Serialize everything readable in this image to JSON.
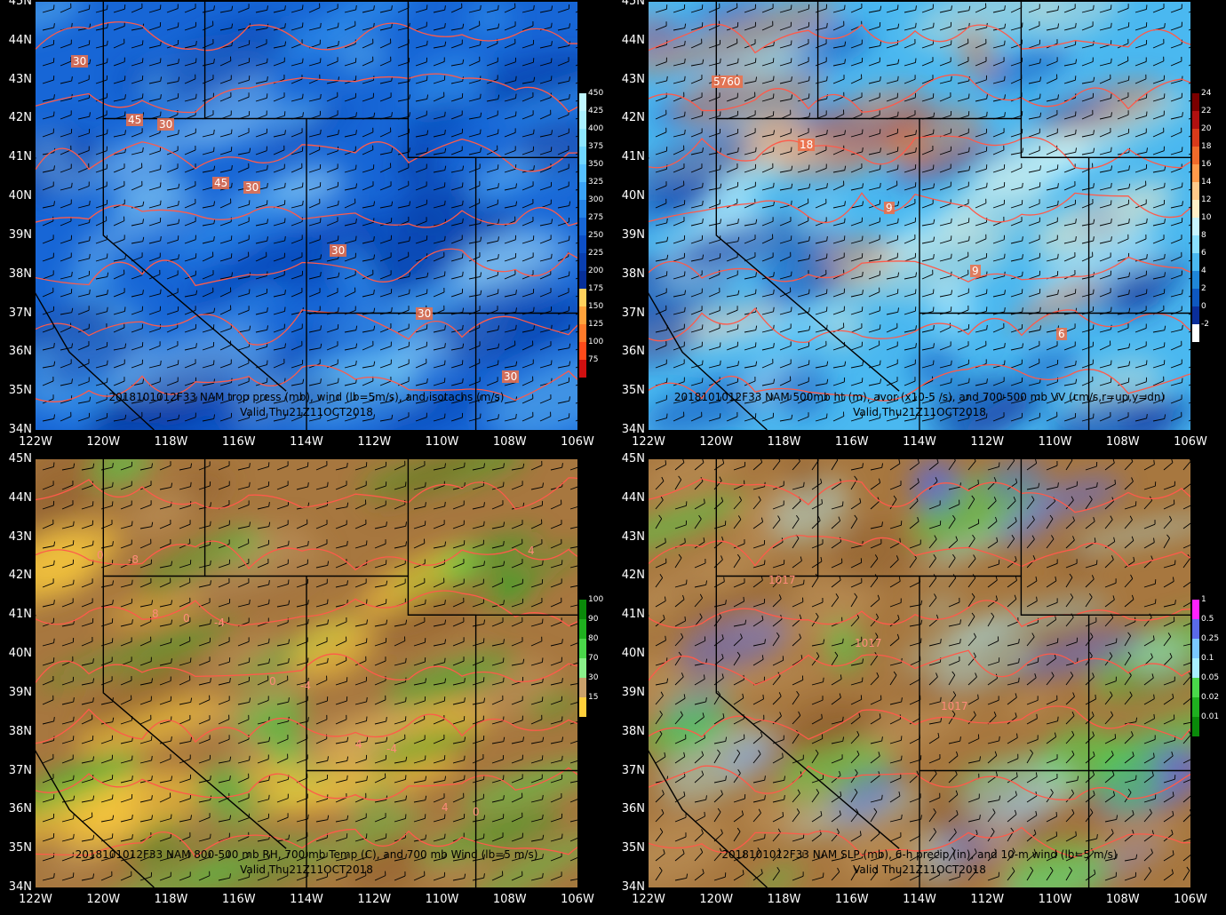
{
  "panels": [
    {
      "id": "trop",
      "caption1": "2018101012F33 NAM trop press (mb), wind (lb=5m/s), and isotachs (m/s)",
      "caption2": "Valid Thu21Z11OCT2018",
      "colorbar": [
        "450",
        "425",
        "400",
        "375",
        "350",
        "325",
        "300",
        "275",
        "250",
        "225",
        "200",
        "175",
        "150",
        "125",
        "100",
        "75"
      ],
      "colorbar_colors": [
        "#bff6ff",
        "#aaf0ff",
        "#8de6ff",
        "#6fd6ff",
        "#55c0ff",
        "#3aa2f5",
        "#2684e6",
        "#1766d6",
        "#0d4fc5",
        "#0a3fb0",
        "#07309a",
        "#ffd15c",
        "#ffa23b",
        "#ff7a2a",
        "#ff4a1a",
        "#d01010"
      ],
      "contour_labels": [
        "30",
        "30",
        "30",
        "30",
        "30",
        "30",
        "45",
        "45"
      ]
    },
    {
      "id": "h500",
      "caption1": "2018101012F33 NAM 500mb ht (m), avor (x10-5 /s), and 700-500 mb VV (cm/s,r=up,y=dn)",
      "caption2": "Valid Thu21Z11OCT2018",
      "colorbar": [
        "24",
        "22",
        "20",
        "18",
        "16",
        "14",
        "12",
        "10",
        "8",
        "6",
        "4",
        "2",
        "0",
        "-2"
      ],
      "colorbar_colors": [
        "#7a0000",
        "#b01010",
        "#d83a1a",
        "#f06a2a",
        "#ff9a4a",
        "#ffc98a",
        "#fff0c8",
        "#c8f5ff",
        "#8ae0ff",
        "#4ab8f0",
        "#1f86d8",
        "#0e58c0",
        "#0a2e9a",
        "#ffffff"
      ],
      "contour_labels": [
        "5760",
        "18",
        "9",
        "9",
        "6"
      ]
    },
    {
      "id": "rh",
      "caption1": "2018101012F33 NAM 800-500 mb RH, 700 mb Temp (C), and 700 mb Wind (lb=5 m/s)",
      "caption2": "Valid Thu21Z11OCT2018",
      "colorbar": [
        "100",
        "90",
        "80",
        "70",
        "30",
        "15"
      ],
      "colorbar_colors": [
        "#0a8a0a",
        "#1fb01f",
        "#4ad84a",
        "#8af08a",
        "#c9a06a",
        "#ffcf3a"
      ],
      "contour_labels": [
        "-8",
        "-4",
        "-4",
        "-4",
        "0",
        "0",
        "0",
        "0",
        "4",
        "4",
        "4",
        "8"
      ]
    },
    {
      "id": "slp",
      "caption1": "2018101012F33 NAM SLP (mb), 6-h precip (in), and 10-m wind (lb=5 m/s)",
      "caption2": "Valid Thu21Z11OCT2018",
      "colorbar": [
        "1",
        "0.5",
        "0.25",
        "0.1",
        "0.05",
        "0.02",
        "0.01"
      ],
      "colorbar_colors": [
        "#ff22ff",
        "#5a6ae8",
        "#7ac8ff",
        "#a8f0ff",
        "#4ad84a",
        "#1fb01f",
        "#0a8a0a"
      ],
      "contour_labels": [
        "1017",
        "1017",
        "1017"
      ]
    }
  ],
  "lat_labels": [
    "45N",
    "44N",
    "43N",
    "42N",
    "41N",
    "40N",
    "39N",
    "38N",
    "37N",
    "36N",
    "35N",
    "34N"
  ],
  "lon_labels": [
    "122W",
    "120W",
    "118W",
    "116W",
    "114W",
    "112W",
    "110W",
    "108W",
    "106W"
  ]
}
